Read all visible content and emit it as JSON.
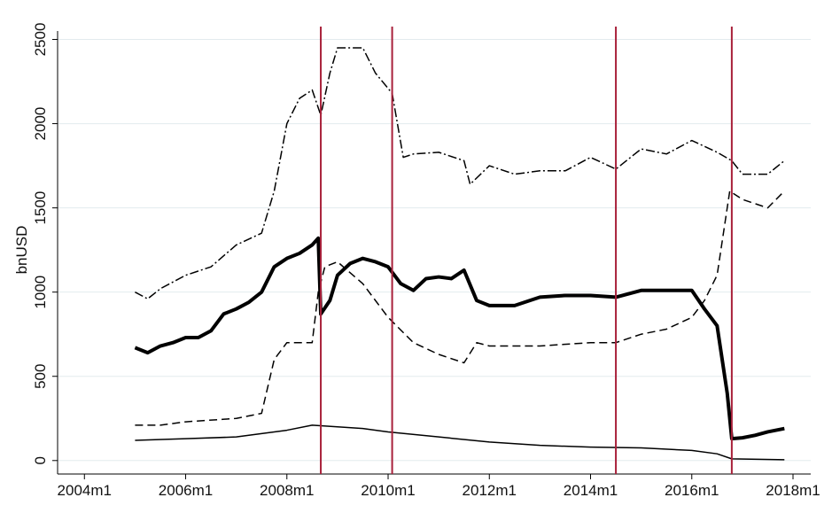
{
  "chart_data": {
    "type": "line",
    "y_label": "bnUSD",
    "grid": true,
    "xlim": [
      2003.47,
      2018.35
    ],
    "ylim": [
      -80,
      2550
    ],
    "xticks": [
      {
        "value": 2004,
        "label": "2004m1"
      },
      {
        "value": 2006,
        "label": "2006m1"
      },
      {
        "value": 2008,
        "label": "2008m1"
      },
      {
        "value": 2010,
        "label": "2010m1"
      },
      {
        "value": 2012,
        "label": "2012m1"
      },
      {
        "value": 2014,
        "label": "2014m1"
      },
      {
        "value": 2016,
        "label": "2016m1"
      },
      {
        "value": 2018,
        "label": "2018m1"
      }
    ],
    "yticks": [
      0,
      500,
      1000,
      1500,
      2000,
      2500
    ],
    "vlines": [
      2008.67,
      2010.08,
      2014.5,
      2016.79
    ],
    "vline_color": "#a8203a",
    "series": [
      {
        "color": "#000",
        "dash": "dash-dot",
        "width": 1.5,
        "x": [
          2005,
          2005.25,
          2005.5,
          2006,
          2006.5,
          2007,
          2007.5,
          2007.75,
          2008,
          2008.25,
          2008.5,
          2008.67,
          2008.85,
          2009,
          2009.5,
          2009.75,
          2010.08,
          2010.3,
          2010.5,
          2011,
          2011.5,
          2011.62,
          2012,
          2012.5,
          2013,
          2013.5,
          2014,
          2014.5,
          2015,
          2015.5,
          2016,
          2016.5,
          2016.79,
          2017,
          2017.5,
          2017.83
        ],
        "values": [
          1000,
          960,
          1020,
          1100,
          1150,
          1280,
          1350,
          1600,
          2000,
          2150,
          2200,
          2050,
          2300,
          2450,
          2450,
          2300,
          2180,
          1800,
          1820,
          1830,
          1780,
          1640,
          1750,
          1700,
          1720,
          1720,
          1800,
          1730,
          1850,
          1820,
          1900,
          1830,
          1780,
          1700,
          1700,
          1780
        ]
      },
      {
        "color": "#000",
        "dash": "dashed",
        "width": 1.5,
        "x": [
          2005,
          2005.5,
          2006,
          2007,
          2007.5,
          2007.75,
          2008,
          2008.5,
          2008.62,
          2008.75,
          2009,
          2009.5,
          2010,
          2010.5,
          2011,
          2011.5,
          2011.75,
          2012,
          2013,
          2014,
          2014.5,
          2015,
          2015.5,
          2016,
          2016.25,
          2016.5,
          2016.75,
          2017,
          2017.5,
          2017.83
        ],
        "values": [
          210,
          210,
          230,
          250,
          280,
          600,
          700,
          700,
          1000,
          1150,
          1180,
          1050,
          850,
          700,
          630,
          580,
          700,
          680,
          680,
          700,
          700,
          750,
          780,
          850,
          950,
          1100,
          1600,
          1550,
          1500,
          1600
        ]
      },
      {
        "color": "#000",
        "dash": "solid",
        "width": 4,
        "x": [
          2005,
          2005.25,
          2005.5,
          2005.75,
          2006,
          2006.25,
          2006.5,
          2006.75,
          2007,
          2007.25,
          2007.5,
          2007.75,
          2008,
          2008.25,
          2008.5,
          2008.62,
          2008.67,
          2008.85,
          2009,
          2009.25,
          2009.5,
          2009.75,
          2010,
          2010.25,
          2010.5,
          2010.75,
          2011,
          2011.25,
          2011.5,
          2011.75,
          2012,
          2012.5,
          2013,
          2013.5,
          2014,
          2014.5,
          2015,
          2015.5,
          2016,
          2016.25,
          2016.5,
          2016.7,
          2016.79,
          2017,
          2017.25,
          2017.5,
          2017.83
        ],
        "values": [
          670,
          640,
          680,
          700,
          730,
          730,
          770,
          870,
          900,
          940,
          1000,
          1150,
          1200,
          1230,
          1280,
          1320,
          870,
          950,
          1100,
          1170,
          1200,
          1180,
          1150,
          1050,
          1010,
          1080,
          1090,
          1080,
          1130,
          950,
          920,
          920,
          970,
          980,
          980,
          970,
          1010,
          1010,
          1010,
          900,
          800,
          400,
          130,
          135,
          150,
          170,
          190
        ]
      },
      {
        "color": "#000",
        "dash": "solid",
        "width": 1.5,
        "x": [
          2005,
          2006,
          2007,
          2008,
          2008.5,
          2009,
          2009.5,
          2010,
          2011,
          2012,
          2013,
          2014,
          2015,
          2016,
          2016.5,
          2016.79,
          2017.83
        ],
        "values": [
          120,
          130,
          140,
          180,
          210,
          200,
          190,
          170,
          140,
          110,
          90,
          80,
          75,
          60,
          40,
          10,
          5
        ]
      }
    ]
  }
}
